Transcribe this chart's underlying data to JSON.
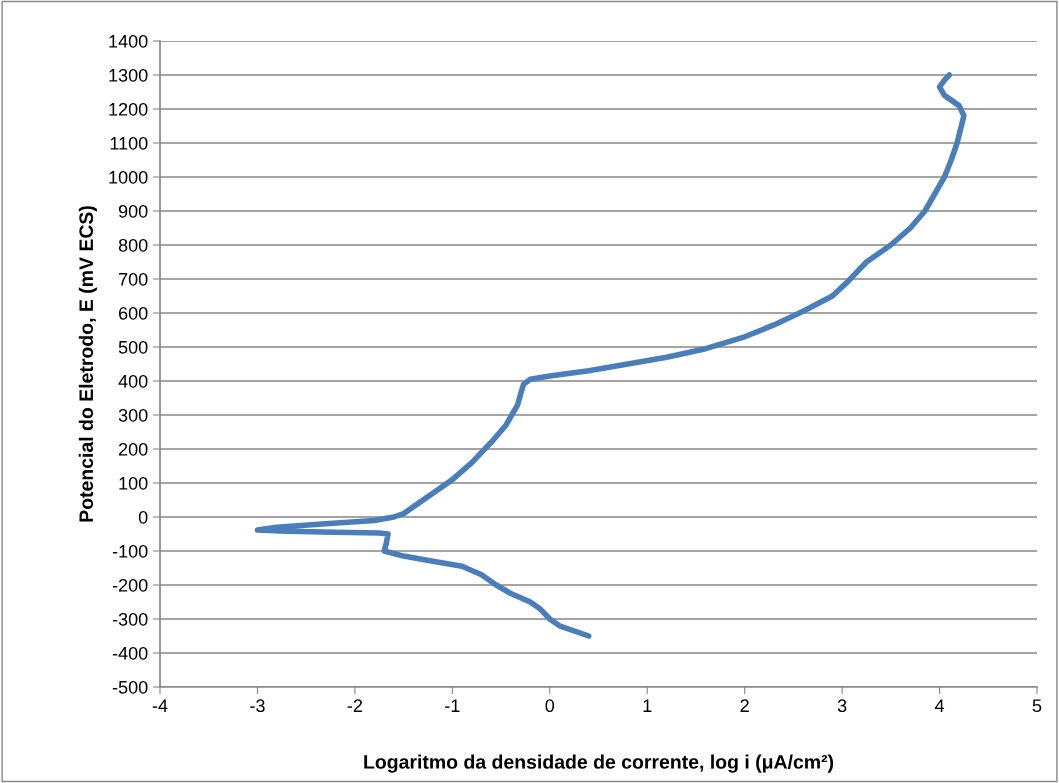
{
  "chart_data": {
    "type": "line",
    "xlabel": "Logaritmo da densidade de corrente, log i (μA/cm²)",
    "ylabel": "Potencial do Eletrodo, E (mV ECS)",
    "series": [
      {
        "color": "#4a7ebb",
        "x": [
          0.4,
          0.1,
          0,
          -0.1,
          -0.2,
          -0.4,
          -0.55,
          -0.7,
          -0.9,
          -1.2,
          -1.5,
          -1.7,
          -1.68,
          -1.66,
          -1.75,
          -2.2,
          -2.7,
          -3.0,
          -2.8,
          -2.3,
          -1.8,
          -1.6,
          -1.5,
          -1.35,
          -1.2,
          -1.0,
          -0.8,
          -0.6,
          -0.45,
          -0.33,
          -0.3,
          -0.27,
          -0.2,
          0,
          0.4,
          0.8,
          1.2,
          1.6,
          2.0,
          2.3,
          2.6,
          2.9,
          3.05,
          3.25,
          3.5,
          3.7,
          3.85,
          3.95,
          4.05,
          4.12,
          4.18,
          4.25,
          4.2,
          4.05,
          4.0,
          4.05,
          4.1
        ],
        "values": [
          -350,
          -320,
          -300,
          -270,
          -250,
          -225,
          -200,
          -170,
          -145,
          -130,
          -115,
          -100,
          -80,
          -50,
          -47,
          -45,
          -42,
          -38,
          -30,
          -20,
          -10,
          0,
          10,
          40,
          70,
          110,
          160,
          220,
          270,
          330,
          360,
          390,
          405,
          415,
          430,
          450,
          470,
          495,
          530,
          565,
          605,
          650,
          690,
          750,
          800,
          850,
          900,
          950,
          1000,
          1050,
          1100,
          1180,
          1210,
          1240,
          1265,
          1285,
          1300
        ]
      }
    ],
    "xlim": [
      -4,
      5
    ],
    "xticks": [
      -4,
      -3,
      -2,
      -1,
      0,
      1,
      2,
      3,
      4,
      5
    ],
    "ylim": [
      -500,
      1400
    ],
    "yticks": [
      -500,
      -400,
      -300,
      -200,
      -100,
      0,
      100,
      200,
      300,
      400,
      500,
      600,
      700,
      800,
      900,
      1000,
      1100,
      1200,
      1300,
      1400
    ],
    "grid": "y",
    "legend": false,
    "marker": "none",
    "line_style": "solid"
  }
}
